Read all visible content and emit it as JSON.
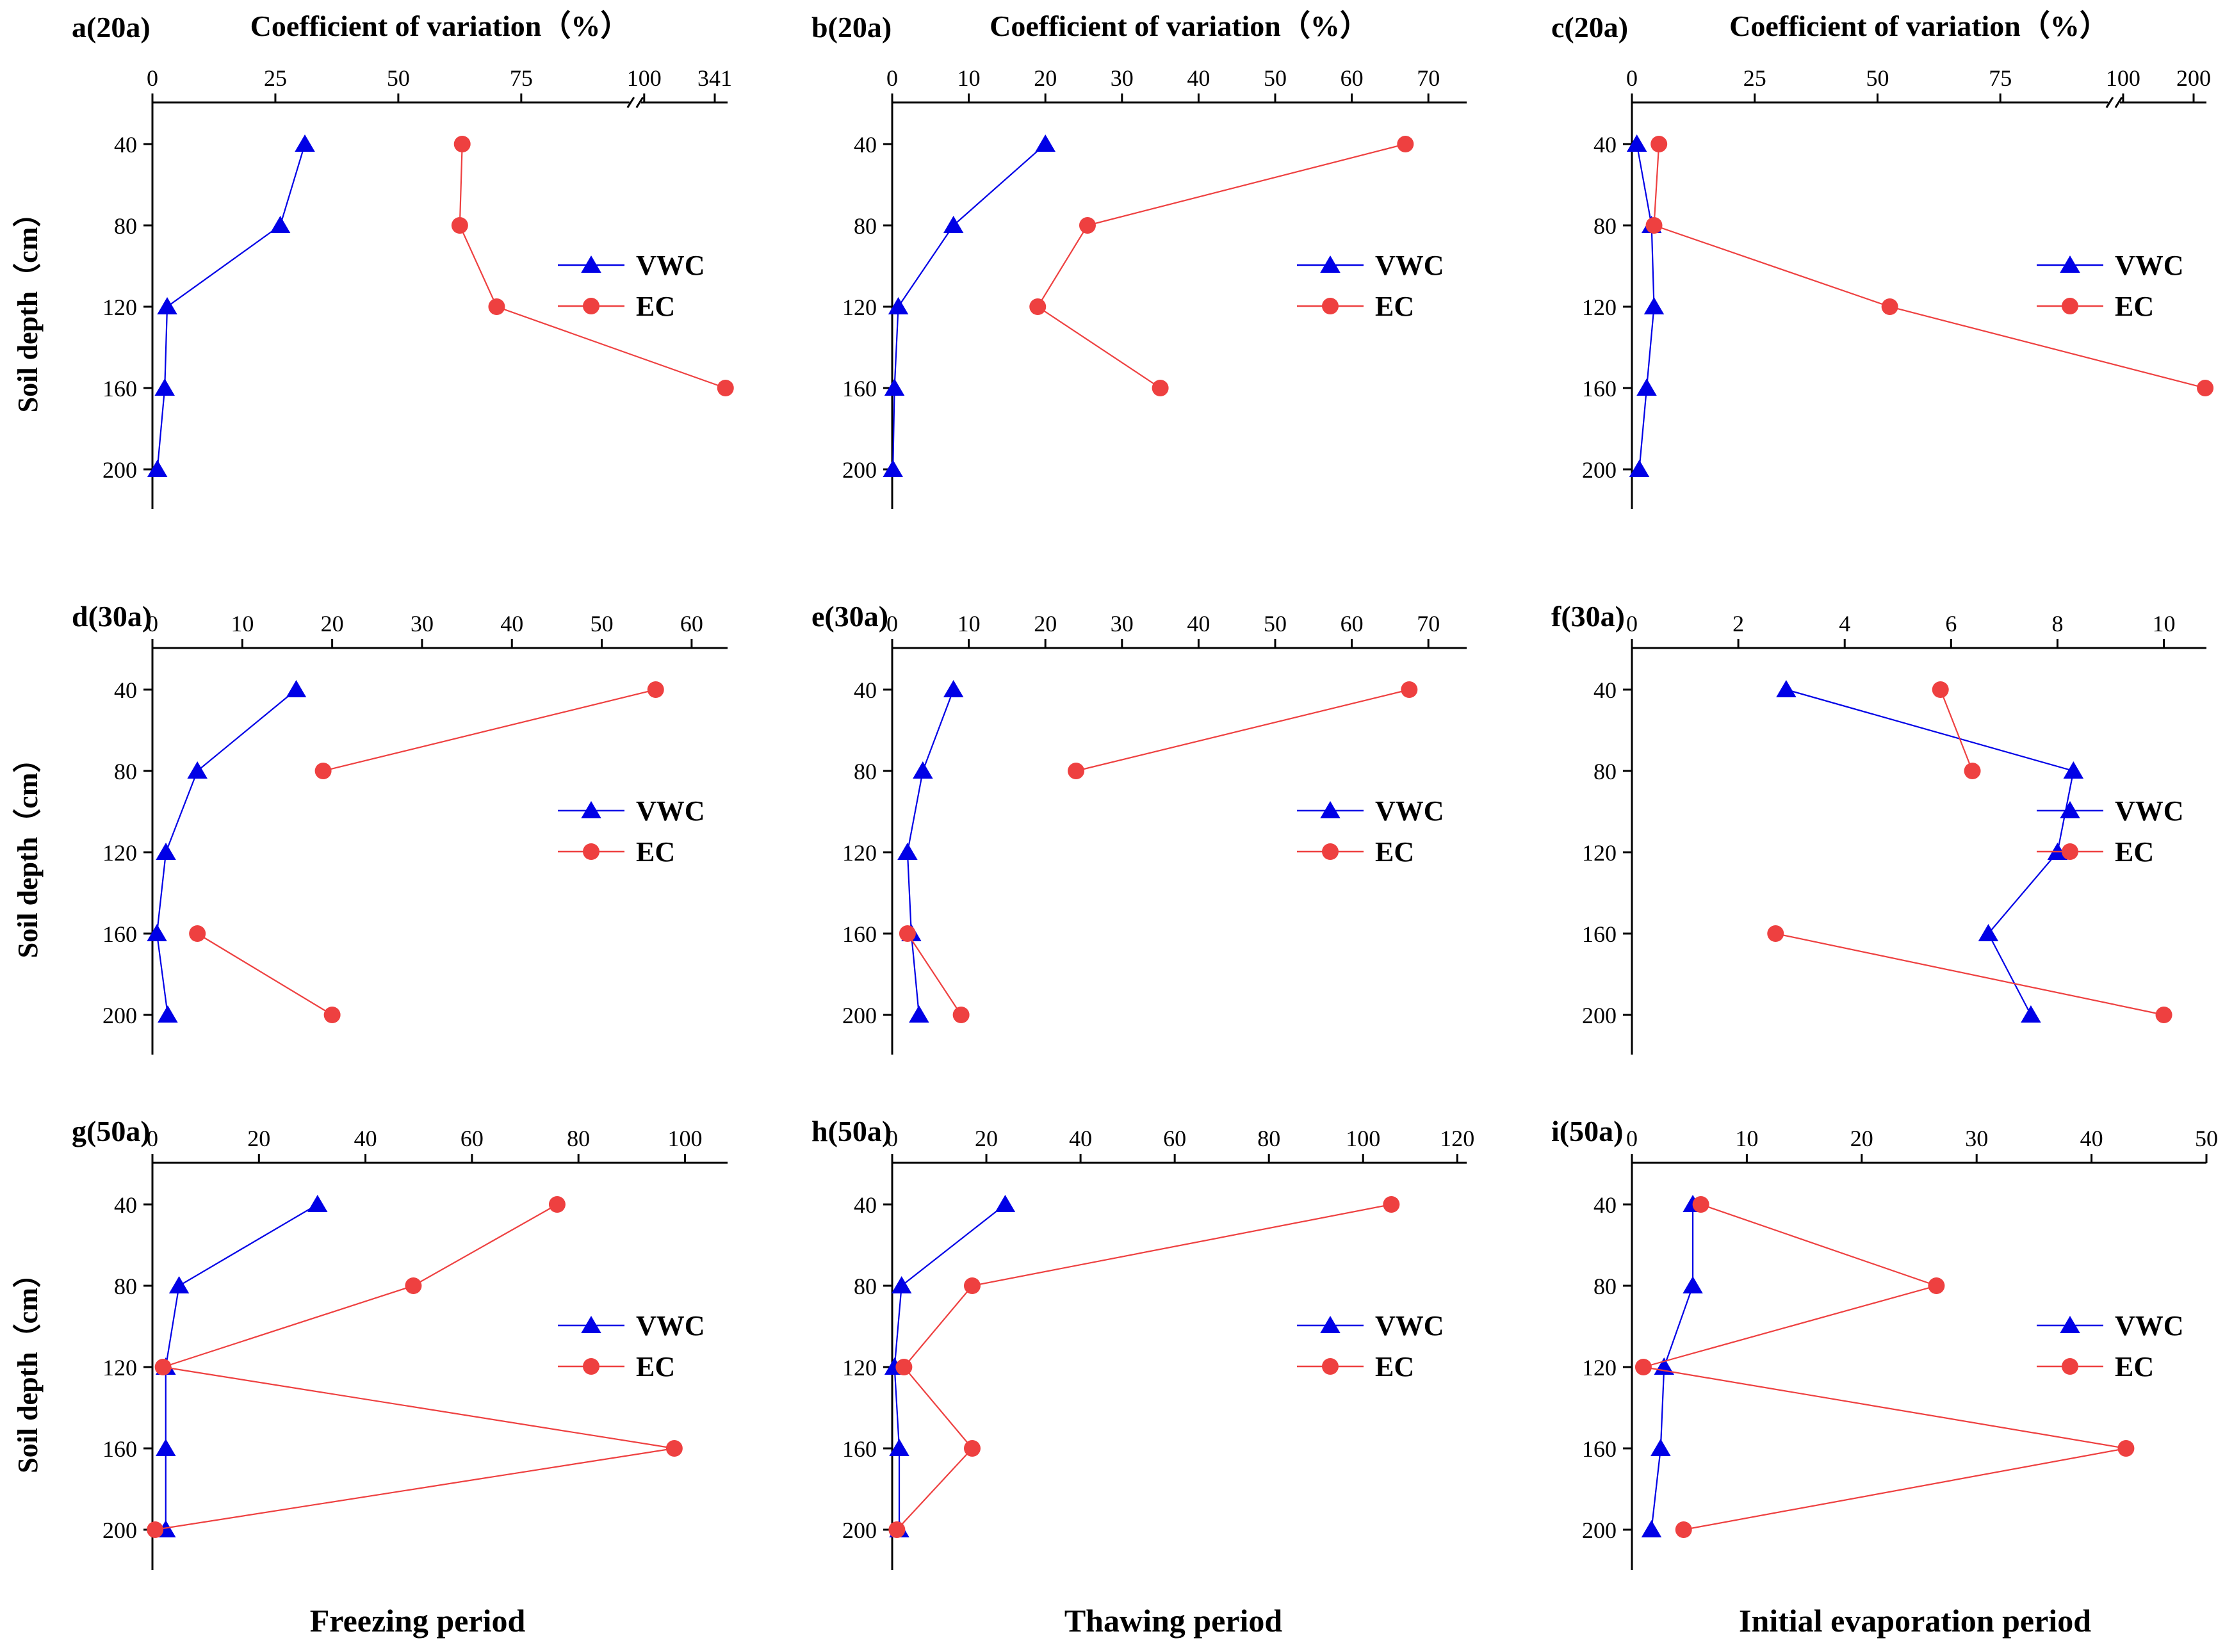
{
  "figure": {
    "top_axis_title": "Coefficient of variation（%）",
    "y_axis_title": "Soil depth（cm）",
    "periods": [
      "Freezing period",
      "Thawing period",
      "Initial evaporation period"
    ],
    "colors": {
      "vwc": "#0000E6",
      "ec": "#EE4040",
      "axis": "#000000"
    }
  },
  "chart_data": [
    {
      "panel": "a(20a)",
      "type": "line",
      "xlabel": "Coefficient of variation（%）",
      "ylabel": "Soil depth（cm）",
      "depths": [
        40,
        80,
        120,
        160,
        200
      ],
      "xlim": [
        0,
        341
      ],
      "x_axis_break": [
        100,
        341
      ],
      "xticks": [
        0,
        25,
        50,
        75,
        100
      ],
      "xtick_labels": [
        "0",
        "25",
        "50",
        "75",
        "100"
      ],
      "break_tick_labels": [
        "341"
      ],
      "series": [
        {
          "name": "VWC",
          "marker": "triangle",
          "color": "#0000E6",
          "values": [
            31,
            26,
            3,
            2.5,
            1
          ]
        },
        {
          "name": "EC",
          "marker": "circle",
          "color": "#EE4040",
          "values": [
            63,
            62.5,
            70,
            335,
            null
          ]
        }
      ],
      "legend": {
        "items": [
          "VWC",
          "EC"
        ],
        "position": "right"
      }
    },
    {
      "panel": "b(20a)",
      "type": "line",
      "xlabel": "Coefficient of variation（%）",
      "ylabel": "Soil depth（cm）",
      "depths": [
        40,
        80,
        120,
        160,
        200
      ],
      "xlim": [
        0,
        75
      ],
      "xticks": [
        0,
        10,
        20,
        30,
        40,
        50,
        60,
        70
      ],
      "xtick_labels": [
        "0",
        "10",
        "20",
        "30",
        "40",
        "50",
        "60",
        "70"
      ],
      "series": [
        {
          "name": "VWC",
          "marker": "triangle",
          "color": "#0000E6",
          "values": [
            20,
            8,
            0.8,
            0.3,
            0.1
          ]
        },
        {
          "name": "EC",
          "marker": "circle",
          "color": "#EE4040",
          "values": [
            67,
            25.5,
            19,
            35,
            null
          ]
        }
      ],
      "legend": {
        "items": [
          "VWC",
          "EC"
        ],
        "position": "right"
      }
    },
    {
      "panel": "c(20a)",
      "type": "line",
      "xlabel": "Coefficient of variation（%）",
      "ylabel": "Soil depth（cm）",
      "depths": [
        40,
        80,
        120,
        160,
        200
      ],
      "xlim": [
        0,
        235
      ],
      "x_axis_break": [
        100,
        200
      ],
      "xticks": [
        0,
        25,
        50,
        75,
        100
      ],
      "xtick_labels": [
        "0",
        "25",
        "50",
        "75",
        "100"
      ],
      "break_tick_labels": [
        "200"
      ],
      "series": [
        {
          "name": "VWC",
          "marker": "triangle",
          "color": "#0000E6",
          "values": [
            1,
            4,
            4.5,
            3,
            1.5
          ]
        },
        {
          "name": "EC",
          "marker": "circle",
          "color": "#EE4040",
          "values": [
            5.5,
            4.5,
            52.5,
            233,
            null
          ]
        }
      ],
      "legend": {
        "items": [
          "VWC",
          "EC"
        ],
        "position": "right"
      }
    },
    {
      "panel": "d(30a)",
      "type": "line",
      "ylabel": "Soil depth（cm）",
      "depths": [
        40,
        80,
        120,
        160,
        200
      ],
      "xlim": [
        0,
        64
      ],
      "xticks": [
        0,
        10,
        20,
        30,
        40,
        50,
        60
      ],
      "xtick_labels": [
        "0",
        "10",
        "20",
        "30",
        "40",
        "50",
        "60"
      ],
      "series": [
        {
          "name": "VWC",
          "marker": "triangle",
          "color": "#0000E6",
          "values": [
            16,
            5,
            1.5,
            0.5,
            1.7
          ]
        },
        {
          "name": "EC",
          "marker": "circle",
          "color": "#EE4040",
          "values": [
            56,
            19,
            null,
            5,
            20
          ]
        }
      ],
      "legend": {
        "items": [
          "VWC",
          "EC"
        ],
        "position": "right"
      }
    },
    {
      "panel": "e(30a)",
      "type": "line",
      "ylabel": "Soil depth（cm）",
      "depths": [
        40,
        80,
        120,
        160,
        200
      ],
      "xlim": [
        0,
        75
      ],
      "xticks": [
        0,
        10,
        20,
        30,
        40,
        50,
        60,
        70
      ],
      "xtick_labels": [
        "0",
        "10",
        "20",
        "30",
        "40",
        "50",
        "60",
        "70"
      ],
      "series": [
        {
          "name": "VWC",
          "marker": "triangle",
          "color": "#0000E6",
          "values": [
            8,
            4,
            2,
            2.5,
            3.5
          ]
        },
        {
          "name": "EC",
          "marker": "circle",
          "color": "#EE4040",
          "values": [
            67.5,
            24,
            null,
            2,
            9
          ]
        }
      ],
      "legend": {
        "items": [
          "VWC",
          "EC"
        ],
        "position": "right"
      }
    },
    {
      "panel": "f(30a)",
      "type": "line",
      "ylabel": "Soil depth（cm）",
      "depths": [
        40,
        80,
        120,
        160,
        200
      ],
      "xlim": [
        0,
        10.8
      ],
      "xticks": [
        0,
        2,
        4,
        6,
        8,
        10
      ],
      "xtick_labels": [
        "0",
        "2",
        "4",
        "6",
        "8",
        "10"
      ],
      "series": [
        {
          "name": "VWC",
          "marker": "triangle",
          "color": "#0000E6",
          "values": [
            2.9,
            8.3,
            8.0,
            6.7,
            7.5
          ]
        },
        {
          "name": "EC",
          "marker": "circle",
          "color": "#EE4040",
          "values": [
            5.8,
            6.4,
            null,
            2.7,
            10.0
          ]
        }
      ],
      "legend": {
        "items": [
          "VWC",
          "EC"
        ],
        "position": "right"
      }
    },
    {
      "panel": "g(50a)",
      "type": "line",
      "ylabel": "Soil depth（cm）",
      "depths": [
        40,
        80,
        120,
        160,
        200
      ],
      "xlim": [
        0,
        108
      ],
      "xticks": [
        0,
        20,
        40,
        60,
        80,
        100
      ],
      "xtick_labels": [
        "0",
        "20",
        "40",
        "60",
        "80",
        "100"
      ],
      "series": [
        {
          "name": "VWC",
          "marker": "triangle",
          "color": "#0000E6",
          "values": [
            31,
            5,
            2.5,
            2.5,
            2.5
          ]
        },
        {
          "name": "EC",
          "marker": "circle",
          "color": "#EE4040",
          "values": [
            76,
            49,
            2,
            98,
            0.5
          ]
        }
      ],
      "legend": {
        "items": [
          "VWC",
          "EC"
        ],
        "position": "right"
      }
    },
    {
      "panel": "h(50a)",
      "type": "line",
      "ylabel": "Soil depth（cm）",
      "depths": [
        40,
        80,
        120,
        160,
        200
      ],
      "xlim": [
        0,
        122
      ],
      "xticks": [
        0,
        20,
        40,
        60,
        80,
        100,
        120
      ],
      "xtick_labels": [
        "0",
        "20",
        "40",
        "60",
        "80",
        "100",
        "120"
      ],
      "series": [
        {
          "name": "VWC",
          "marker": "triangle",
          "color": "#0000E6",
          "values": [
            24,
            2,
            0.5,
            1.5,
            1.5
          ]
        },
        {
          "name": "EC",
          "marker": "circle",
          "color": "#EE4040",
          "values": [
            106,
            17,
            2.5,
            17,
            1
          ]
        }
      ],
      "legend": {
        "items": [
          "VWC",
          "EC"
        ],
        "position": "right"
      }
    },
    {
      "panel": "i(50a)",
      "type": "line",
      "ylabel": "Soil depth（cm）",
      "depths": [
        40,
        80,
        120,
        160,
        200
      ],
      "xlim": [
        0,
        50
      ],
      "xticks": [
        0,
        10,
        20,
        30,
        40,
        50
      ],
      "xtick_labels": [
        "0",
        "10",
        "20",
        "30",
        "40",
        "50"
      ],
      "series": [
        {
          "name": "VWC",
          "marker": "triangle",
          "color": "#0000E6",
          "values": [
            5.3,
            5.3,
            2.8,
            2.5,
            1.7
          ]
        },
        {
          "name": "EC",
          "marker": "circle",
          "color": "#EE4040",
          "values": [
            6,
            26.5,
            1,
            43,
            4.5
          ]
        }
      ],
      "legend": {
        "items": [
          "VWC",
          "EC"
        ],
        "position": "right"
      }
    }
  ]
}
